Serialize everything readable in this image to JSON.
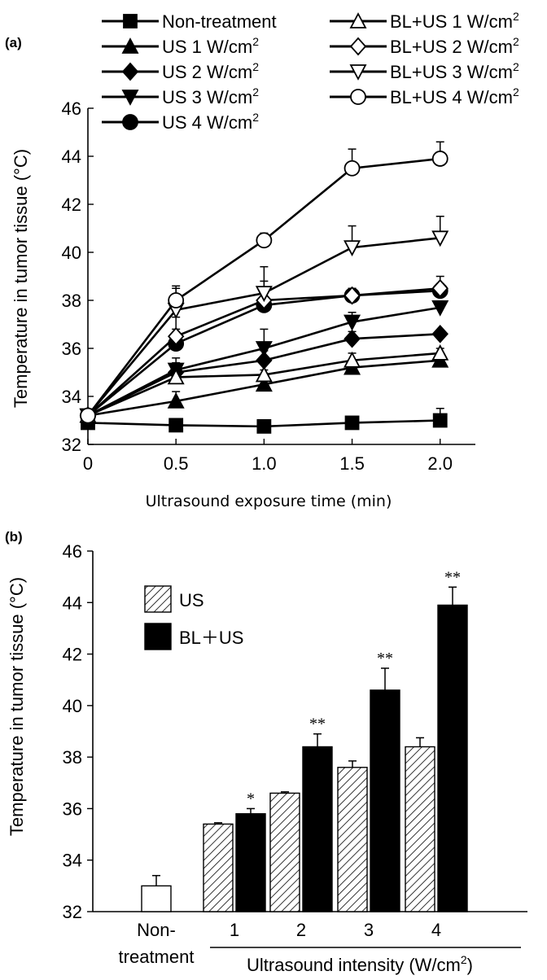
{
  "chart_data": [
    {
      "panel": "(a)",
      "type": "line",
      "xlabel": "Ultrasound exposure time (min)",
      "ylabel": "Temperature in tumor tissue (°C)",
      "x": [
        0,
        0.5,
        1.0,
        1.5,
        2.0
      ],
      "xtick_labels": [
        "0",
        "0.5",
        "1.0",
        "1.5",
        "2.0"
      ],
      "xlim": [
        0,
        2.2
      ],
      "ylim": [
        32,
        46
      ],
      "yticks": [
        32,
        34,
        36,
        38,
        40,
        42,
        44,
        46
      ],
      "legend_position": "top",
      "series": [
        {
          "name": "Non-treatment",
          "marker": "square",
          "fill": "filled",
          "values": [
            32.9,
            32.8,
            32.75,
            32.9,
            33.0
          ],
          "err": [
            0,
            0.1,
            0.1,
            0.1,
            0.5
          ]
        },
        {
          "name": "US 1 W/cm",
          "sup": "2",
          "marker": "triangle-up",
          "fill": "filled",
          "values": [
            33.2,
            33.8,
            34.5,
            35.2,
            35.5
          ],
          "err": [
            0,
            0.4,
            0.6,
            0.3,
            0.2
          ]
        },
        {
          "name": "US 2 W/cm",
          "sup": "2",
          "marker": "diamond",
          "fill": "filled",
          "values": [
            33.2,
            35.0,
            35.5,
            36.4,
            36.6
          ],
          "err": [
            0,
            0.4,
            0.4,
            0.3,
            0.1
          ]
        },
        {
          "name": "US 3 W/cm",
          "sup": "2",
          "marker": "triangle-down",
          "fill": "filled",
          "values": [
            33.2,
            35.1,
            36.0,
            37.1,
            37.7
          ],
          "err": [
            0,
            0.5,
            0.8,
            0.4,
            0.2
          ]
        },
        {
          "name": "US 4 W/cm",
          "sup": "2",
          "marker": "circle",
          "fill": "filled",
          "values": [
            33.2,
            36.2,
            37.8,
            38.2,
            38.4
          ],
          "err": [
            0,
            0.6,
            0.5,
            0.3,
            0.3
          ]
        },
        {
          "name": "BL+US 1 W/cm",
          "sup": "2",
          "marker": "triangle-up",
          "fill": "open",
          "values": [
            33.2,
            34.8,
            34.9,
            35.5,
            35.8
          ],
          "err": [
            0,
            0.5,
            0.5,
            0.3,
            0.2
          ]
        },
        {
          "name": "BL+US 2 W/cm",
          "sup": "2",
          "marker": "diamond",
          "fill": "open",
          "values": [
            33.2,
            36.5,
            38.0,
            38.2,
            38.5
          ],
          "err": [
            0,
            0.8,
            0.8,
            0.3,
            0.5
          ]
        },
        {
          "name": "BL+US 3 W/cm",
          "sup": "2",
          "marker": "triangle-down",
          "fill": "open",
          "values": [
            33.2,
            37.6,
            38.3,
            40.2,
            40.6
          ],
          "err": [
            0,
            0.9,
            1.1,
            0.9,
            0.9
          ]
        },
        {
          "name": "BL+US 4 W/cm",
          "sup": "2",
          "marker": "circle",
          "fill": "open",
          "values": [
            33.2,
            38.0,
            40.5,
            43.5,
            43.9
          ],
          "err": [
            0,
            0.6,
            0.3,
            0.8,
            0.7
          ]
        }
      ]
    },
    {
      "panel": "(b)",
      "type": "bar",
      "ylabel": "Temperature in tumor tissue (°C)",
      "xlabel": "Ultrasound intensity (W/cm",
      "xlabel_sup": "2",
      "xlabel_end": ")",
      "ylim": [
        32,
        46
      ],
      "yticks": [
        32,
        34,
        36,
        38,
        40,
        42,
        44,
        46
      ],
      "control": {
        "label_line1": "Non-",
        "label_line2": "treatment",
        "value": 33.0,
        "err": 0.4
      },
      "categories": [
        "1",
        "2",
        "3",
        "4"
      ],
      "series": [
        {
          "name": "US",
          "pattern": "hatched",
          "values": [
            35.4,
            36.6,
            37.6,
            38.4
          ],
          "err": [
            0.05,
            0.05,
            0.25,
            0.35
          ]
        },
        {
          "name": "BL＋US",
          "pattern": "solid",
          "values": [
            35.8,
            38.4,
            40.6,
            43.9
          ],
          "err": [
            0.2,
            0.5,
            0.85,
            0.7
          ]
        }
      ],
      "significance": [
        "*",
        "**",
        "**",
        "**"
      ],
      "legend_position": "top-left"
    }
  ]
}
